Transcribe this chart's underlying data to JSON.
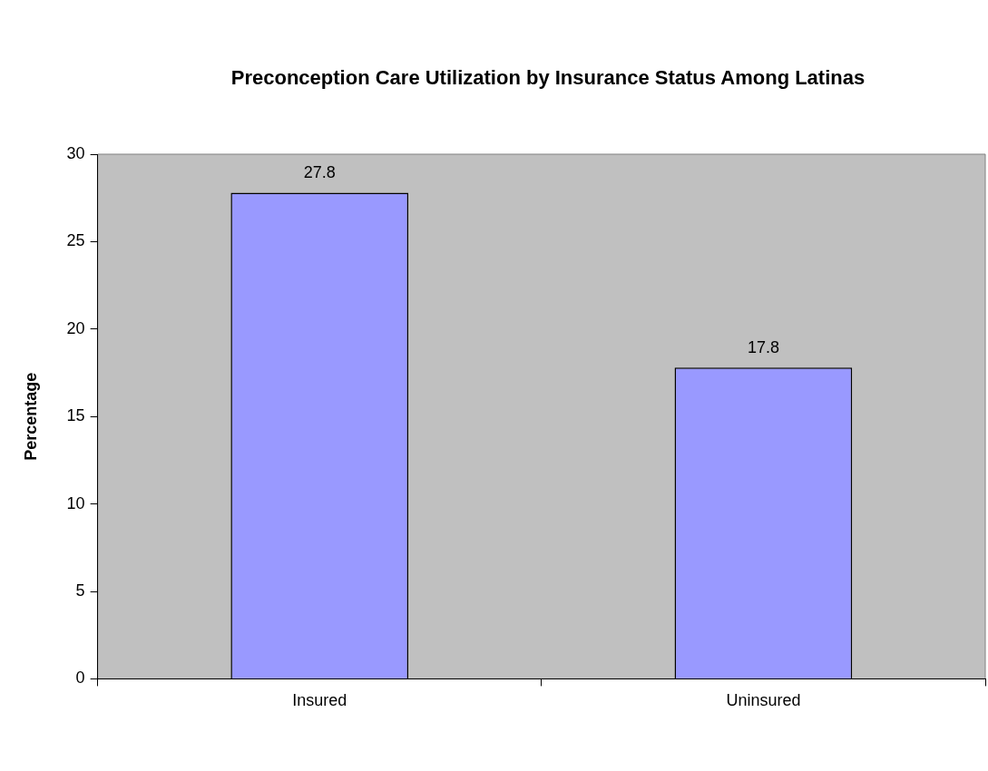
{
  "chart_data": {
    "type": "bar",
    "title": "Preconception Care Utilization by Insurance Status Among Latinas",
    "ylabel": "Percentage",
    "categories": [
      "Insured",
      "Uninsured"
    ],
    "values": [
      27.8,
      17.8
    ],
    "color": "#9999ff",
    "ylim": [
      0,
      30
    ],
    "yticks": [
      0,
      5,
      10,
      15,
      20,
      25,
      30
    ],
    "grid": false,
    "legend": false,
    "data_labels": true
  }
}
